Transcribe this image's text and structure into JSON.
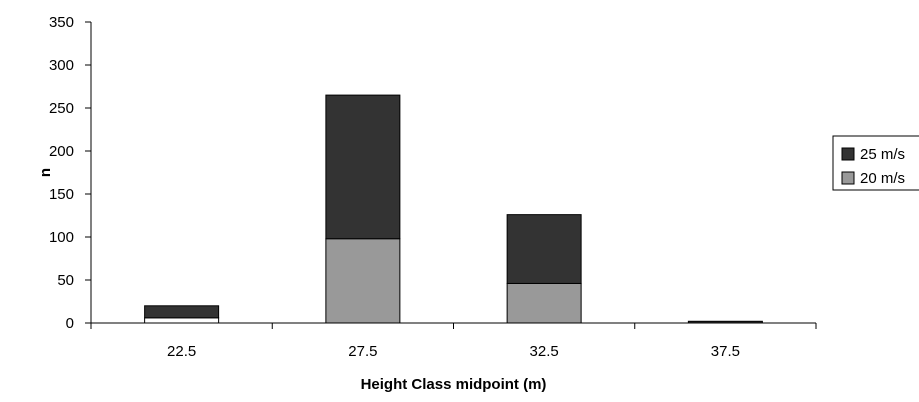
{
  "chart_data": {
    "type": "bar",
    "stacked": true,
    "categories": [
      "22.5",
      "27.5",
      "32.5",
      "37.5"
    ],
    "series": [
      {
        "name": "20 m/s",
        "values": [
          6,
          98,
          46,
          0
        ],
        "color": "#999999"
      },
      {
        "name": "25 m/s",
        "values": [
          14,
          167,
          80,
          2
        ],
        "color": "#333333"
      }
    ],
    "first_bar_lower_color": "#ffffff",
    "xlabel": "Height Class midpoint (m)",
    "ylabel": "n",
    "ylim": [
      0,
      350
    ],
    "yticks": [
      0,
      50,
      100,
      150,
      200,
      250,
      300,
      350
    ],
    "grid": false,
    "legend_position": "right",
    "legend_order": [
      "25 m/s",
      "20 m/s"
    ]
  }
}
